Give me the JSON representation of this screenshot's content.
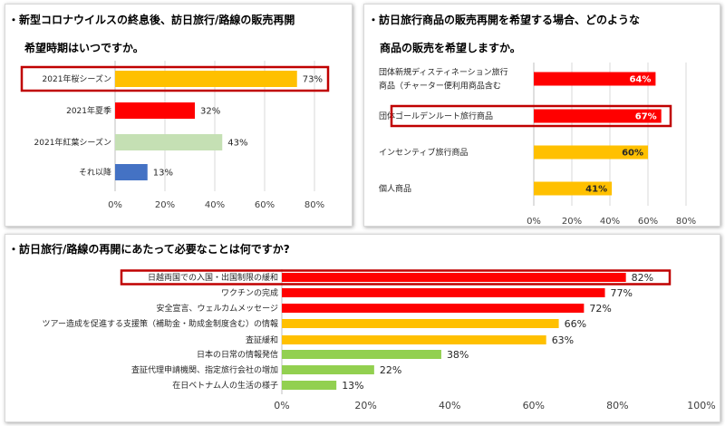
{
  "colors": {
    "red": "#ff0000",
    "orange": "#ffc000",
    "light_green": "#c5e0b4",
    "blue": "#4472c4",
    "green": "#92d050",
    "highlight_border": "#c00000",
    "grid": "#d9d9d9"
  },
  "chart_data": [
    {
      "type": "bar",
      "orientation": "horizontal",
      "title": "・新型コロナウイルスの終息後、訪日旅行/路線の販売再開",
      "subtitle": "希望時期はいつですか。",
      "categories": [
        "2021年桜シーズン",
        "2021年夏季",
        "2021年紅葉シーズン",
        "それ以降"
      ],
      "values": [
        73,
        32,
        43,
        13
      ],
      "value_labels": [
        "73%",
        "32%",
        "43%",
        "13%"
      ],
      "bar_colors": [
        "orange",
        "red",
        "light_green",
        "blue"
      ],
      "highlighted_category": "2021年桜シーズン",
      "xlim": [
        0,
        80
      ],
      "xticks": [
        "0%",
        "20%",
        "40%",
        "60%",
        "80%"
      ],
      "grid": true
    },
    {
      "type": "bar",
      "orientation": "horizontal",
      "title": "・訪日旅行商品の販売再開を希望する場合、どのような",
      "subtitle": "商品の販売を希望しますか。",
      "categories": [
        [
          "団体新規ディスティネーション旅行",
          "商品（チャーター便利用商品含む"
        ],
        [
          "団体ゴールデンルート旅行商品"
        ],
        [
          "インセンティブ旅行商品"
        ],
        [
          "個人商品"
        ]
      ],
      "values": [
        64,
        67,
        60,
        41
      ],
      "value_labels": [
        "64%",
        "67%",
        "60%",
        "41%"
      ],
      "bar_colors": [
        "red",
        "red",
        "orange",
        "orange"
      ],
      "highlighted_category": "団体ゴールデンルート旅行商品",
      "xlim": [
        0,
        80
      ],
      "xticks": [
        "0%",
        "20%",
        "40%",
        "60%",
        "80%"
      ],
      "grid": true
    },
    {
      "type": "bar",
      "orientation": "horizontal",
      "title": "・訪日旅行/路線の再開にあたって必要なことは何ですか?",
      "categories": [
        "日越両国での入国・出国制限の緩和",
        "ワクチンの完成",
        "安全宣言、ウェルカムメッセージ",
        "ツアー造成を促進する支援策（補助金・助成金制度含む）の情報",
        "査証緩和",
        "日本の日常の情報発信",
        "査証代理申請機関、指定旅行会社の増加",
        "在日ベトナム人の生活の様子"
      ],
      "values": [
        82,
        77,
        72,
        66,
        63,
        38,
        22,
        13
      ],
      "value_labels": [
        "82%",
        "77%",
        "72%",
        "66%",
        "63%",
        "38%",
        "22%",
        "13%"
      ],
      "bar_colors": [
        "red",
        "red",
        "red",
        "orange",
        "orange",
        "green",
        "green",
        "green"
      ],
      "highlighted_category": "日越両国での入国・出国制限の緩和",
      "xlim": [
        0,
        100
      ],
      "xticks": [
        "0%",
        "20%",
        "40%",
        "60%",
        "80%",
        "100%"
      ],
      "grid": false
    }
  ]
}
